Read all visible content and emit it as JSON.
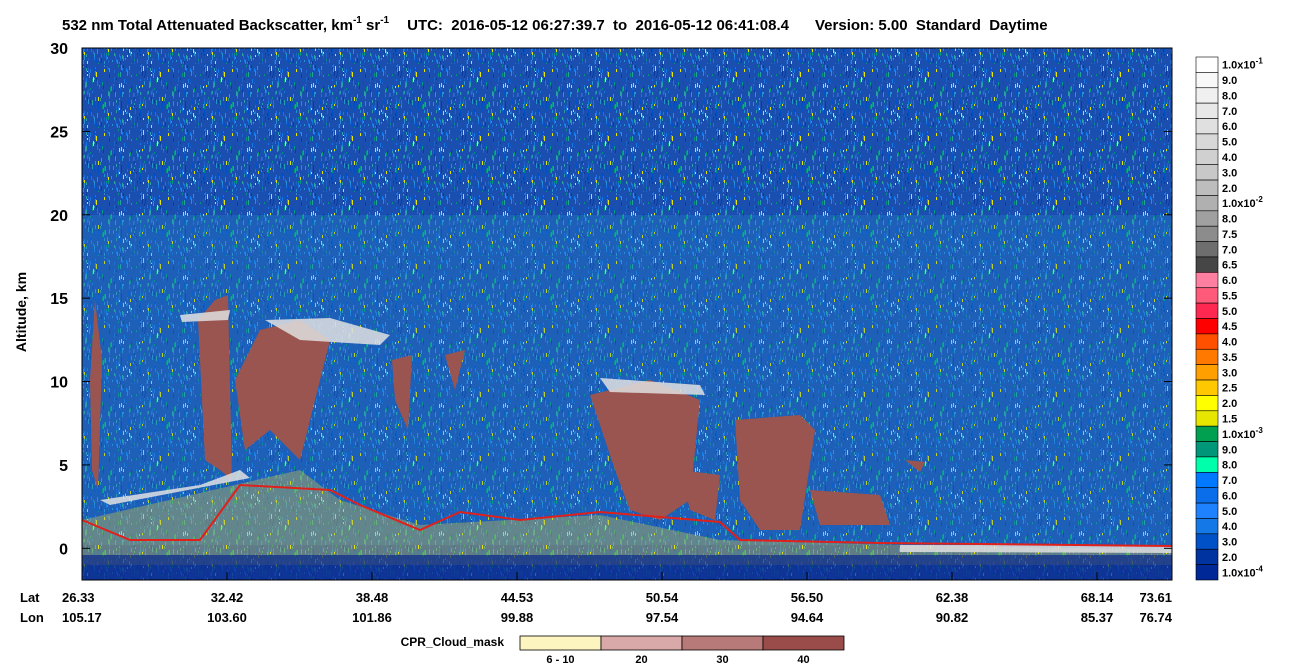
{
  "title": {
    "main": "532 nm Total Attenuated Backscatter, km",
    "sup1": "-1",
    "mid": " sr",
    "sup2": "-1",
    "utc": "UTC:  2016-05-12 06:27:39.7  to  2016-05-12 06:41:08.4",
    "version": "Version: 5.00  Standard  Daytime"
  },
  "chart_data": {
    "type": "heatmap",
    "y_label": "Altitude, km",
    "ylim": [
      -1.9,
      30
    ],
    "yticks": [
      0,
      5,
      10,
      15,
      20,
      25,
      30
    ],
    "x_row_labels": [
      "Lat",
      "Lon"
    ],
    "lat": [
      "26.33",
      "32.42",
      "38.48",
      "44.53",
      "50.54",
      "56.50",
      "62.38",
      "68.14",
      "73.61"
    ],
    "lon": [
      "105.17",
      "103.60",
      "101.86",
      "99.88",
      "97.54",
      "94.64",
      "90.82",
      "85.37",
      "76.74"
    ],
    "colorbar": [
      {
        "label": "1.0x10",
        "sup": "-1",
        "color": "#ffffff"
      },
      {
        "label": "9.0",
        "color": "#f8f8f8"
      },
      {
        "label": "8.0",
        "color": "#f0f0f0"
      },
      {
        "label": "7.0",
        "color": "#e8e8e8"
      },
      {
        "label": "6.0",
        "color": "#e0e0e0"
      },
      {
        "label": "5.0",
        "color": "#d8d8d8"
      },
      {
        "label": "4.0",
        "color": "#d0d0d0"
      },
      {
        "label": "3.0",
        "color": "#c8c8c8"
      },
      {
        "label": "2.0",
        "color": "#bdbdbd"
      },
      {
        "label": "1.0x10",
        "sup": "-2",
        "color": "#b0b0b0"
      },
      {
        "label": "8.0",
        "color": "#a0a0a0"
      },
      {
        "label": "7.5",
        "color": "#8c8c8c"
      },
      {
        "label": "7.0",
        "color": "#6e6e6e"
      },
      {
        "label": "6.5",
        "color": "#464646"
      },
      {
        "label": "6.0",
        "color": "#ff7fa0"
      },
      {
        "label": "5.5",
        "color": "#ff5a7a"
      },
      {
        "label": "5.0",
        "color": "#ff2850"
      },
      {
        "label": "4.5",
        "color": "#ff0000"
      },
      {
        "label": "4.0",
        "color": "#ff5000"
      },
      {
        "label": "3.5",
        "color": "#ff7800"
      },
      {
        "label": "3.0",
        "color": "#ffa000"
      },
      {
        "label": "2.5",
        "color": "#ffc800"
      },
      {
        "label": "2.0",
        "color": "#ffff00"
      },
      {
        "label": "1.5",
        "color": "#e6e600"
      },
      {
        "label": "1.0x10",
        "sup": "-3",
        "color": "#00a050"
      },
      {
        "label": "9.0",
        "color": "#00967a"
      },
      {
        "label": "8.0",
        "color": "#00ffaa"
      },
      {
        "label": "7.0",
        "color": "#0078ff"
      },
      {
        "label": "6.0",
        "color": "#0a6eeb"
      },
      {
        "label": "5.0",
        "color": "#1e82ff"
      },
      {
        "label": "4.0",
        "color": "#1478e6"
      },
      {
        "label": "3.0",
        "color": "#0050c8"
      },
      {
        "label": "2.0",
        "color": "#0032a0"
      },
      {
        "label": "1.0x10",
        "sup": "-4",
        "color": "#002896"
      }
    ],
    "cloud_mask": {
      "title": "CPR_Cloud_mask",
      "categories": [
        "6 - 10",
        "20",
        "30",
        "40"
      ],
      "colors": [
        "#fdf5c0",
        "#d9a8a8",
        "#b87a78",
        "#9a4c4a"
      ]
    }
  }
}
